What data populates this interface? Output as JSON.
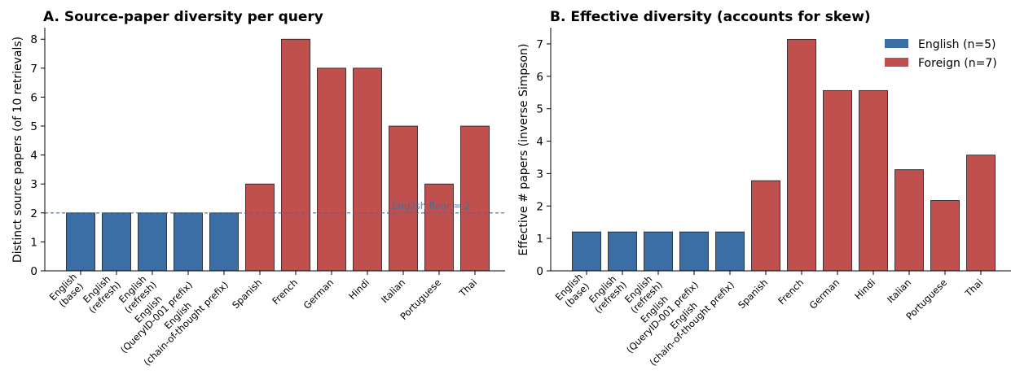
{
  "chart_data": [
    {
      "type": "bar",
      "title": "A. Source-paper diversity per query",
      "xlabel": "",
      "ylabel": "Distinct source papers (of 10 retrievals)",
      "ylim": [
        0,
        8.4
      ],
      "yticks": [
        0,
        1,
        2,
        3,
        4,
        5,
        6,
        7,
        8
      ],
      "categories": [
        [
          "English",
          "(base)"
        ],
        [
          "English",
          "(refresh)"
        ],
        [
          "English",
          "(refresh)"
        ],
        [
          "English",
          "(QueryID-001 prefix)"
        ],
        [
          "English",
          "(chain-of-thought prefix)"
        ],
        [
          "Spanish"
        ],
        [
          "French"
        ],
        [
          "German"
        ],
        [
          "Hindi"
        ],
        [
          "Italian"
        ],
        [
          "Portuguese"
        ],
        [
          "Thai"
        ]
      ],
      "values": [
        2,
        2,
        2,
        2,
        2,
        3,
        8,
        7,
        7,
        5,
        3,
        5
      ],
      "groups": [
        "English",
        "English",
        "English",
        "English",
        "English",
        "Foreign",
        "Foreign",
        "Foreign",
        "Foreign",
        "Foreign",
        "Foreign",
        "Foreign"
      ],
      "reference_line": {
        "value": 2,
        "label": "English floor = 2",
        "color": "#3a6ea5",
        "style": "dashed"
      },
      "grid": false
    },
    {
      "type": "bar",
      "title": "B. Effective diversity (accounts for skew)",
      "xlabel": "",
      "ylabel": "Effective # papers (inverse Simpson)",
      "ylim": [
        0,
        7.5
      ],
      "yticks": [
        0,
        1,
        2,
        3,
        4,
        5,
        6,
        7
      ],
      "categories": [
        [
          "English",
          "(base)"
        ],
        [
          "English",
          "(refresh)"
        ],
        [
          "English",
          "(refresh)"
        ],
        [
          "English",
          "(QueryID-001 prefix)"
        ],
        [
          "English",
          "(chain-of-thought prefix)"
        ],
        [
          "Spanish"
        ],
        [
          "French"
        ],
        [
          "German"
        ],
        [
          "Hindi"
        ],
        [
          "Italian"
        ],
        [
          "Portuguese"
        ],
        [
          "Thai"
        ]
      ],
      "values": [
        1.2,
        1.2,
        1.2,
        1.2,
        1.2,
        2.78,
        7.14,
        5.56,
        5.56,
        3.12,
        2.17,
        3.57
      ],
      "groups": [
        "English",
        "English",
        "English",
        "English",
        "English",
        "Foreign",
        "Foreign",
        "Foreign",
        "Foreign",
        "Foreign",
        "Foreign",
        "Foreign"
      ],
      "legend": {
        "placement": "top-right",
        "entries": [
          {
            "group": "English",
            "label": "English (n=5)"
          },
          {
            "group": "Foreign",
            "label": "Foreign (n=7)"
          }
        ]
      },
      "grid": false
    }
  ],
  "colors": {
    "English": "#3a6ea5",
    "Foreign": "#c0504d",
    "edge": "#1a1a1a",
    "axis": "#000000"
  }
}
